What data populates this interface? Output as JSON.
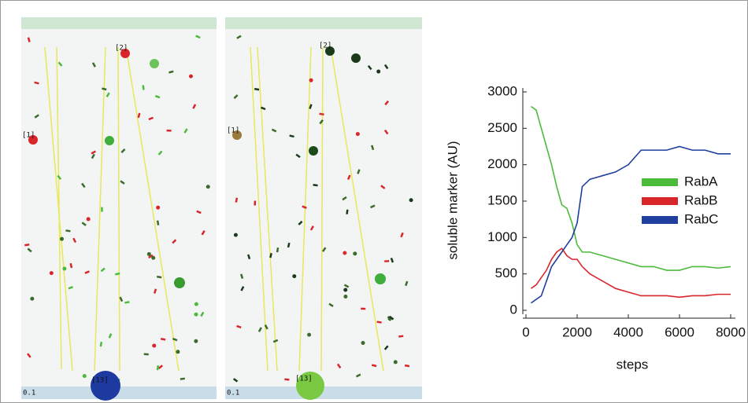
{
  "panels": [
    {
      "cell_labels": [
        "[2]",
        "[1]",
        "[13]"
      ],
      "scale_label": "0.1"
    },
    {
      "cell_labels": [
        "[2]",
        "[1]",
        "[13]"
      ],
      "scale_label": "0.1"
    }
  ],
  "chart_data": {
    "type": "line",
    "xlabel": "steps",
    "ylabel": "soluble marker (AU)",
    "x": [
      200,
      400,
      600,
      800,
      1000,
      1200,
      1400,
      1600,
      1800,
      2000,
      2200,
      2500,
      3000,
      3500,
      4000,
      4500,
      5000,
      5500,
      6000,
      6500,
      7000,
      7500,
      8000
    ],
    "series": [
      {
        "name": "RabA",
        "color": "#4cbb3c",
        "values": [
          2800,
          2750,
          2500,
          2250,
          2000,
          1700,
          1450,
          1400,
          1200,
          900,
          800,
          800,
          750,
          700,
          650,
          600,
          600,
          550,
          550,
          600,
          600,
          580,
          600
        ]
      },
      {
        "name": "RabB",
        "color": "#d9262b",
        "values": [
          300,
          350,
          450,
          550,
          700,
          800,
          850,
          750,
          700,
          700,
          600,
          500,
          400,
          300,
          250,
          200,
          200,
          200,
          180,
          200,
          200,
          220,
          220
        ]
      },
      {
        "name": "RabC",
        "color": "#1f3f9e",
        "values": [
          100,
          150,
          200,
          400,
          600,
          700,
          800,
          900,
          1000,
          1200,
          1700,
          1800,
          1850,
          1900,
          2000,
          2200,
          2200,
          2200,
          2250,
          2200,
          2200,
          2150,
          2150
        ]
      }
    ],
    "xlim": [
      0,
      8000
    ],
    "ylim": [
      0,
      3000
    ],
    "xticks": [
      0,
      2000,
      4000,
      6000,
      8000
    ],
    "yticks": [
      0,
      500,
      1000,
      1500,
      2000,
      2500,
      3000
    ],
    "legend": "right"
  }
}
